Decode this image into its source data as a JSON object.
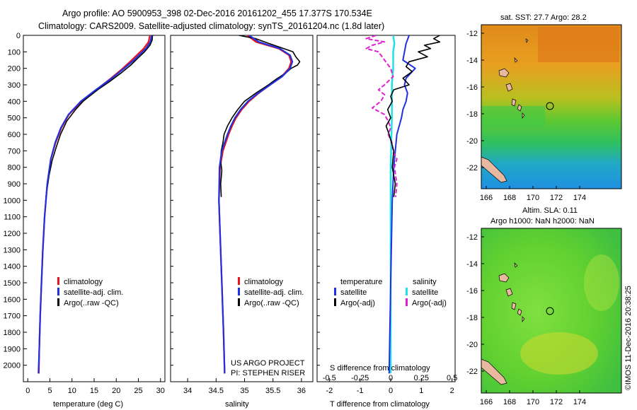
{
  "header": {
    "title_line1": "Argo profile: AO 5900953_398 02-Dec-2016 20161202_455 17.377S 170.534E",
    "title_line2": "Climatology: CARS2009. Satellite-adjusted climatology: synTS_20161204.nc (1.8d later)"
  },
  "colors": {
    "climatology": "#e8141e",
    "satellite": "#2030e0",
    "argo": "#000000",
    "sal_satellite": "#20e0e8",
    "sal_argo": "#e020d0",
    "land": "#e8b8a0"
  },
  "chart_data": [
    {
      "type": "line",
      "id": "temperature",
      "xlabel": "temperature (deg C)",
      "ylabel": "",
      "xlim": [
        -1,
        31
      ],
      "ylim": [
        2100,
        0
      ],
      "xticks": [
        "0",
        "5",
        "10",
        "15",
        "20",
        "25",
        "30"
      ],
      "yticks": [
        "0",
        "100",
        "200",
        "300",
        "400",
        "500",
        "600",
        "700",
        "800",
        "900",
        "1000",
        "1100",
        "1200",
        "1300",
        "1400",
        "1500",
        "1600",
        "1700",
        "1800",
        "1900",
        "2000"
      ],
      "legend": [
        "climatology",
        "satellite-adj. clim.",
        "Argo(..raw -QC)"
      ],
      "series": [
        {
          "name": "climatology",
          "depth": [
            0,
            40,
            80,
            150,
            200,
            260,
            330,
            400,
            480,
            560,
            650,
            750,
            900,
            1100,
            1300,
            1500,
            1700,
            1900,
            2050
          ],
          "values": [
            27.6,
            27.3,
            26.2,
            23.5,
            21.5,
            18.8,
            15.5,
            12.2,
            9.3,
            7.6,
            6.3,
            5.2,
            4.4,
            3.8,
            3.4,
            3.1,
            2.8,
            2.6,
            2.5
          ]
        },
        {
          "name": "satellite-adj. clim.",
          "depth": [
            0,
            40,
            80,
            150,
            200,
            260,
            330,
            400,
            480,
            560,
            650,
            750,
            900,
            1100,
            1300,
            1500,
            1700,
            1900,
            2050
          ],
          "values": [
            28.0,
            27.7,
            26.7,
            24.0,
            21.8,
            19.0,
            15.4,
            12.0,
            9.2,
            7.5,
            6.2,
            5.2,
            4.4,
            3.8,
            3.4,
            3.1,
            2.8,
            2.6,
            2.4
          ]
        },
        {
          "name": "Argo(..raw -QC)",
          "depth": [
            0,
            30,
            60,
            100,
            140,
            180,
            230,
            280,
            330,
            380,
            400,
            450,
            520,
            600,
            680,
            760,
            850,
            980
          ],
          "values": [
            28.2,
            28.1,
            27.6,
            26.4,
            24.8,
            23.3,
            21.0,
            18.5,
            15.8,
            13.4,
            12.5,
            10.8,
            8.8,
            7.4,
            6.4,
            5.5,
            4.8,
            4.1
          ]
        }
      ]
    },
    {
      "type": "line",
      "id": "salinity",
      "xlabel": "salinity",
      "ylabel": "",
      "xlim": [
        33.7,
        36.2
      ],
      "ylim": [
        2100,
        0
      ],
      "xticks": [
        "34",
        "34.5",
        "35",
        "35.5",
        "36"
      ],
      "legend": [
        "climatology",
        "satellite-adj. clim.",
        "Argo(..raw -QC)"
      ],
      "annotation_line1": "US ARGO PROJECT",
      "annotation_line2": "PI: STEPHEN RISER",
      "series": [
        {
          "name": "climatology",
          "depth": [
            0,
            40,
            80,
            120,
            160,
            200,
            250,
            300,
            350,
            400,
            450,
            500,
            550,
            600,
            700,
            800,
            1000,
            1200,
            1500,
            1800,
            2050
          ],
          "values": [
            35.05,
            35.2,
            35.6,
            35.78,
            35.82,
            35.78,
            35.65,
            35.45,
            35.25,
            35.08,
            34.95,
            34.85,
            34.78,
            34.72,
            34.62,
            34.57,
            34.55,
            34.57,
            34.6,
            34.63,
            34.65
          ]
        },
        {
          "name": "satellite-adj. clim.",
          "depth": [
            0,
            40,
            80,
            120,
            160,
            200,
            250,
            300,
            350,
            400,
            450,
            500,
            550,
            600,
            700,
            800,
            1000,
            1200,
            1500,
            1800,
            2050
          ],
          "values": [
            35.08,
            35.25,
            35.62,
            35.8,
            35.84,
            35.8,
            35.66,
            35.45,
            35.24,
            35.06,
            34.93,
            34.83,
            34.76,
            34.7,
            34.6,
            34.56,
            34.55,
            34.57,
            34.6,
            34.63,
            34.65
          ]
        },
        {
          "name": "Argo(..raw -QC)",
          "depth": [
            0,
            20,
            40,
            70,
            100,
            130,
            160,
            180,
            200,
            230,
            260,
            300,
            350,
            400,
            450,
            500,
            550,
            600,
            650,
            700,
            760,
            820,
            900,
            980
          ],
          "values": [
            34.9,
            35.2,
            35.35,
            35.6,
            35.85,
            35.9,
            35.97,
            35.93,
            35.82,
            35.72,
            35.58,
            35.42,
            35.2,
            35.0,
            34.88,
            34.78,
            34.7,
            34.64,
            34.62,
            34.59,
            34.58,
            34.6,
            34.58,
            34.59
          ]
        }
      ]
    },
    {
      "type": "line",
      "id": "difference",
      "xlabel": "T difference from climatology",
      "xlabel_top": "S difference from climatology",
      "xlim": [
        -2.4,
        2.1
      ],
      "ylim": [
        2100,
        0
      ],
      "xticks_T": [
        "-2",
        "-1",
        "0",
        "1",
        "2"
      ],
      "xticks_S": [
        "-0.5",
        "-0.25",
        "0",
        "0.25",
        "0.5"
      ],
      "legend_temperature": "temperature",
      "legend_salinity": "salinity",
      "legend_items": [
        "satellite",
        "Argo(-adj)",
        "satellite",
        "Argo(-adj)"
      ],
      "series": [
        {
          "name": "T satellite",
          "depth": [
            0,
            50,
            100,
            150,
            200,
            260,
            300,
            350,
            400,
            450,
            500,
            600,
            800,
            1000,
            1500,
            2050
          ],
          "values": [
            0.6,
            0.5,
            0.45,
            0.4,
            0.8,
            0.5,
            0.45,
            0.55,
            0.5,
            0.4,
            0.35,
            0.2,
            0.1,
            0.05,
            0.0,
            -0.05
          ]
        },
        {
          "name": "T Argo(-adj)",
          "depth": [
            0,
            20,
            40,
            60,
            80,
            100,
            130,
            160,
            190,
            220,
            260,
            300,
            330,
            370,
            400,
            450,
            500,
            550,
            600,
            700,
            800,
            900,
            980
          ],
          "values": [
            1.6,
            1.4,
            1.6,
            1.1,
            1.3,
            0.9,
            1.2,
            0.6,
            0.5,
            0.7,
            0.4,
            0.6,
            0.1,
            0.0,
            0.05,
            -0.1,
            0.0,
            -0.15,
            -0.05,
            0.1,
            0.05,
            0.15,
            0.1
          ]
        },
        {
          "name": "S satellite",
          "depth": [
            0,
            50,
            100,
            200,
            300,
            500,
            800,
            1200,
            1600,
            2050
          ],
          "values": [
            0.02,
            0.03,
            0.02,
            0.02,
            0.01,
            0.01,
            0.0,
            0.0,
            0.0,
            0.0
          ]
        },
        {
          "name": "S Argo(-adj)",
          "depth": [
            0,
            20,
            40,
            60,
            80,
            100,
            150,
            200,
            250,
            300,
            330,
            360,
            400,
            440,
            480,
            520,
            560,
            600,
            650,
            700,
            750,
            800,
            900,
            980
          ],
          "values": [
            -0.12,
            -0.2,
            -0.05,
            -0.15,
            -0.2,
            -0.1,
            -0.05,
            0.0,
            0.02,
            -0.05,
            -0.1,
            -0.05,
            -0.08,
            -0.15,
            -0.05,
            -0.02,
            0.0,
            -0.02,
            0.01,
            0.02,
            0.05,
            0.03,
            0.05,
            0.04
          ]
        }
      ]
    }
  ],
  "maps": {
    "sst": {
      "title": "sat. SST: 27.7 Argo: 28.2"
    },
    "sla": {
      "title_line1": "Altim. SLA: 0.11",
      "title_line2": "Argo h1000: NaN h2000: NaN"
    },
    "lon_ticks": [
      "166",
      "168",
      "170",
      "172",
      "174"
    ],
    "lat_ticks": [
      "-12",
      "-14",
      "-16",
      "-18",
      "-20",
      "-22"
    ]
  },
  "footer": {
    "credit": "©IMOS 11-Dec-2016 20:38:25"
  }
}
